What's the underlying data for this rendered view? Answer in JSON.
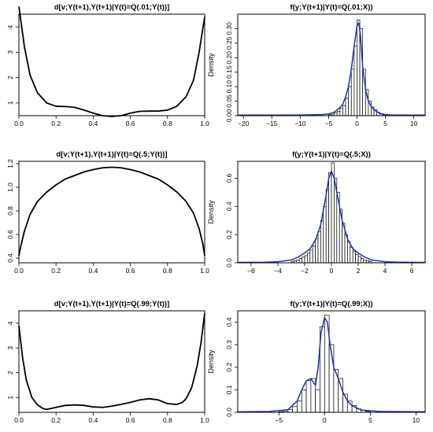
{
  "chart_data": [
    {
      "type": "line",
      "title": "d[v;Y(t+1),Y(t+1)|Y(t)=Q(.01;Y(t))]",
      "xlabel": "",
      "ylabel": "",
      "xlim": [
        0,
        1
      ],
      "ylim": [
        0.5,
        4.5
      ],
      "x_ticks": [
        "0.0",
        "0.2",
        "0.4",
        "0.6",
        "0.8",
        "1.0"
      ],
      "y_ticks": [
        "1",
        "2",
        "3",
        "4"
      ],
      "series": [
        {
          "color": "#000000",
          "x": [
            0.0,
            0.03,
            0.06,
            0.1,
            0.15,
            0.2,
            0.25,
            0.3,
            0.35,
            0.4,
            0.45,
            0.5,
            0.55,
            0.6,
            0.65,
            0.7,
            0.75,
            0.8,
            0.85,
            0.9,
            0.94,
            0.97,
            1.0
          ],
          "y": [
            4.8,
            3.2,
            2.1,
            1.4,
            1.0,
            0.87,
            0.86,
            0.83,
            0.72,
            0.6,
            0.5,
            0.47,
            0.5,
            0.6,
            0.67,
            0.68,
            0.68,
            0.72,
            0.87,
            1.25,
            1.9,
            3.0,
            4.4
          ]
        }
      ]
    },
    {
      "type": "bar",
      "title": "f(y;Y(t+1)|Y(t)=Q(.01;X))",
      "xlabel": "",
      "ylabel": "Density",
      "xlim": [
        -21,
        12
      ],
      "ylim": [
        0,
        0.35
      ],
      "x_ticks": [
        "−20",
        "−15",
        "−10",
        "−5",
        "0",
        "5",
        "10"
      ],
      "y_ticks": [
        "0.00",
        "0.05",
        "0.10",
        "0.15",
        "0.20",
        "0.25",
        "0.30"
      ],
      "bin_width": 0.5,
      "bins_x0": [
        -5,
        -4.5,
        -4,
        -3.5,
        -3,
        -2.5,
        -2,
        -1.5,
        -1,
        -0.5,
        0,
        0.5,
        1,
        1.5,
        2,
        2.5,
        3,
        3.5,
        4,
        4.5
      ],
      "bins_density": [
        0.003,
        0.005,
        0.01,
        0.015,
        0.025,
        0.035,
        0.06,
        0.1,
        0.16,
        0.24,
        0.33,
        0.3,
        0.16,
        0.09,
        0.05,
        0.03,
        0.02,
        0.012,
        0.006,
        0.003
      ],
      "density_curve": {
        "color": "#1f2fb4",
        "x": [
          -21,
          -12,
          -8,
          -6,
          -5,
          -4,
          -3,
          -2.5,
          -2,
          -1.5,
          -1,
          -0.5,
          0,
          0.3,
          0.6,
          1,
          1.5,
          2,
          2.5,
          3,
          4,
          5,
          6,
          8,
          12
        ],
        "y": [
          0.002,
          0.002,
          0.003,
          0.004,
          0.006,
          0.012,
          0.028,
          0.04,
          0.065,
          0.1,
          0.16,
          0.24,
          0.31,
          0.32,
          0.28,
          0.17,
          0.09,
          0.05,
          0.032,
          0.02,
          0.008,
          0.004,
          0.002,
          0.002,
          0.002
        ]
      }
    },
    {
      "type": "line",
      "title": "d[v;Y(t+1),Y(t+1)|Y(t)=Q(.5;Y(t))]",
      "xlabel": "",
      "ylabel": "",
      "xlim": [
        0,
        1
      ],
      "ylim": [
        0.36,
        1.22
      ],
      "x_ticks": [
        "0.0",
        "0.2",
        "0.4",
        "0.6",
        "0.8",
        "1.0"
      ],
      "y_ticks": [
        "0.4",
        "0.6",
        "0.8",
        "1.0",
        "1.2"
      ],
      "series": [
        {
          "color": "#000000",
          "x": [
            0.0,
            0.01,
            0.03,
            0.06,
            0.1,
            0.15,
            0.2,
            0.25,
            0.3,
            0.35,
            0.4,
            0.45,
            0.5,
            0.55,
            0.6,
            0.65,
            0.7,
            0.75,
            0.8,
            0.85,
            0.9,
            0.94,
            0.97,
            0.99,
            1.0
          ],
          "y": [
            0.42,
            0.5,
            0.63,
            0.77,
            0.88,
            0.96,
            1.02,
            1.07,
            1.1,
            1.13,
            1.15,
            1.165,
            1.17,
            1.165,
            1.15,
            1.13,
            1.1,
            1.07,
            1.02,
            0.96,
            0.88,
            0.78,
            0.65,
            0.52,
            0.42
          ]
        }
      ]
    },
    {
      "type": "bar",
      "title": "f(y;Y(t+1)|Y(t)=Q(.5;X))",
      "xlabel": "",
      "ylabel": "Density",
      "xlim": [
        -7,
        7
      ],
      "ylim": [
        0,
        0.72
      ],
      "x_ticks": [
        "−6",
        "−4",
        "−2",
        "0",
        "2",
        "4",
        "6"
      ],
      "y_ticks": [
        "0.0",
        "0.2",
        "0.4",
        "0.6"
      ],
      "bin_width": 0.2,
      "bins_x0": [
        -3,
        -2.8,
        -2.6,
        -2.4,
        -2.2,
        -2,
        -1.8,
        -1.6,
        -1.4,
        -1.2,
        -1,
        -0.8,
        -0.6,
        -0.4,
        -0.2,
        0,
        0.2,
        0.4,
        0.6,
        0.8,
        1,
        1.2,
        1.4,
        1.6,
        1.8,
        2,
        2.2,
        2.4,
        2.6,
        2.8
      ],
      "bins_density": [
        0.01,
        0.015,
        0.02,
        0.03,
        0.04,
        0.05,
        0.07,
        0.09,
        0.12,
        0.17,
        0.22,
        0.3,
        0.4,
        0.52,
        0.64,
        0.71,
        0.6,
        0.5,
        0.38,
        0.28,
        0.2,
        0.15,
        0.11,
        0.08,
        0.06,
        0.045,
        0.03,
        0.02,
        0.015,
        0.01
      ],
      "density_curve": {
        "color": "#1f2fb4",
        "x": [
          -7,
          -5,
          -4,
          -3,
          -2.5,
          -2,
          -1.6,
          -1.2,
          -0.8,
          -0.4,
          -0.2,
          0,
          0.2,
          0.4,
          0.8,
          1.2,
          1.6,
          2,
          2.5,
          3,
          4,
          5,
          7
        ],
        "y": [
          0.003,
          0.004,
          0.008,
          0.02,
          0.04,
          0.07,
          0.1,
          0.16,
          0.27,
          0.48,
          0.6,
          0.65,
          0.6,
          0.5,
          0.3,
          0.17,
          0.1,
          0.07,
          0.04,
          0.02,
          0.008,
          0.004,
          0.003
        ]
      }
    },
    {
      "type": "line",
      "title": "d[v;Y(t+1),Y(t+1)|Y(t)=Q(.99;Y(t))]",
      "xlabel": "",
      "ylabel": "",
      "xlim": [
        0,
        1
      ],
      "ylim": [
        0.4,
        4.5
      ],
      "x_ticks": [
        "0.0",
        "0.2",
        "0.4",
        "0.6",
        "0.8",
        "1.0"
      ],
      "y_ticks": [
        "1",
        "2",
        "3",
        "4"
      ],
      "series": [
        {
          "color": "#000000",
          "x": [
            0.0,
            0.02,
            0.04,
            0.07,
            0.1,
            0.13,
            0.15,
            0.2,
            0.25,
            0.3,
            0.35,
            0.4,
            0.45,
            0.5,
            0.55,
            0.6,
            0.65,
            0.7,
            0.75,
            0.8,
            0.85,
            0.88,
            0.9,
            0.93,
            0.96,
            0.98,
            1.0
          ],
          "y": [
            3.9,
            2.6,
            1.7,
            1.0,
            0.7,
            0.55,
            0.52,
            0.6,
            0.68,
            0.7,
            0.68,
            0.62,
            0.6,
            0.65,
            0.72,
            0.8,
            0.9,
            0.95,
            0.9,
            0.75,
            0.72,
            0.8,
            0.95,
            1.4,
            2.3,
            3.2,
            4.4
          ]
        }
      ]
    },
    {
      "type": "bar",
      "title": "f(y;Y(t+1)|Y(t)=Q(.99;X))",
      "xlabel": "",
      "ylabel": "Density",
      "xlim": [
        -9.5,
        11
      ],
      "ylim": [
        0,
        0.45
      ],
      "x_ticks": [
        "−5",
        "0",
        "5",
        "10"
      ],
      "y_ticks": [
        "0.0",
        "0.1",
        "0.2",
        "0.3",
        "0.4"
      ],
      "bin_width": 0.5,
      "bins_x0": [
        -5,
        -4.5,
        -4,
        -3.5,
        -3,
        -2.5,
        -2,
        -1.5,
        -1,
        -0.5,
        0,
        0.5,
        1,
        1.5,
        2,
        2.5,
        3,
        3.5,
        4,
        4.5
      ],
      "bins_density": [
        0.003,
        0.006,
        0.012,
        0.025,
        0.05,
        0.1,
        0.14,
        0.15,
        0.1,
        0.38,
        0.43,
        0.3,
        0.19,
        0.15,
        0.08,
        0.05,
        0.03,
        0.015,
        0.008,
        0.004
      ],
      "density_curve": {
        "color": "#1f2fb4",
        "x": [
          -9.5,
          -6,
          -4,
          -3,
          -2.5,
          -2,
          -1.5,
          -1,
          -0.7,
          -0.4,
          0,
          0.3,
          0.6,
          1,
          1.5,
          2,
          2.5,
          3,
          4,
          6,
          11
        ],
        "y": [
          0.002,
          0.004,
          0.012,
          0.05,
          0.1,
          0.14,
          0.15,
          0.12,
          0.2,
          0.35,
          0.42,
          0.4,
          0.3,
          0.2,
          0.15,
          0.09,
          0.05,
          0.03,
          0.01,
          0.004,
          0.002
        ]
      }
    }
  ]
}
